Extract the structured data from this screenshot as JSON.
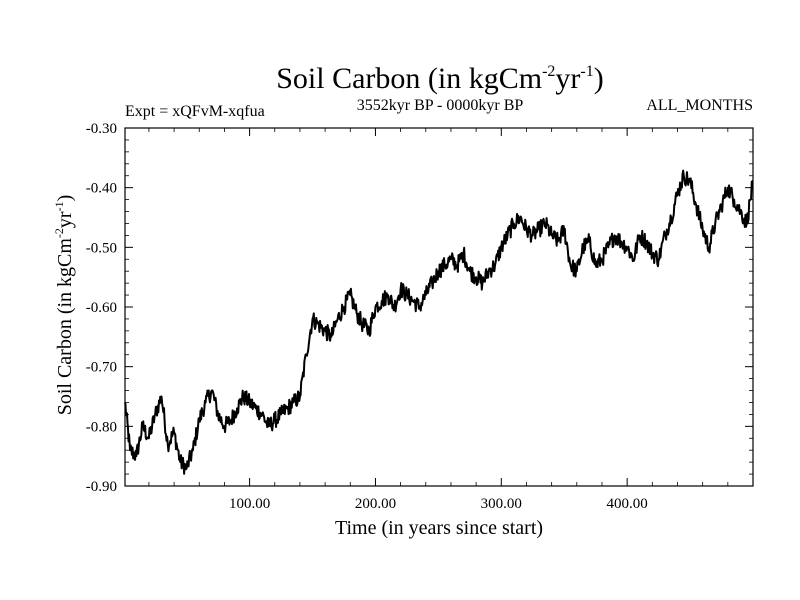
{
  "chart_data": {
    "type": "line",
    "title_main": "Soil Carbon (in kgCm",
    "title_sup1": "-2",
    "title_mid": "yr",
    "title_sup2": "-1",
    "title_end": ")",
    "subtitle_left": "Expt = xQFvM-xqfua",
    "subtitle_center": "3552kyr BP - 0000kyr BP",
    "subtitle_right": "ALL_MONTHS",
    "xlabel": "Time (in years since start)",
    "ylabel_main": "Soil Carbon (in kgCm",
    "ylabel_sup1": "-2",
    "ylabel_mid": "yr",
    "ylabel_sup2": "-1",
    "ylabel_end": ")",
    "xlim": [
      1,
      500
    ],
    "ylim": [
      -0.9,
      -0.3
    ],
    "xticks": [
      100,
      200,
      300,
      400
    ],
    "xtick_labels": [
      "100.00",
      "200.00",
      "300.00",
      "400.00"
    ],
    "yticks": [
      -0.9,
      -0.8,
      -0.7,
      -0.6,
      -0.5,
      -0.4,
      -0.3
    ],
    "ytick_labels": [
      "-0.90",
      "-0.80",
      "-0.70",
      "-0.60",
      "-0.50",
      "-0.40",
      "-0.30"
    ],
    "line_color": "#000000",
    "series": [
      {
        "name": "Soil Carbon",
        "x": [
          1,
          5,
          10,
          15,
          20,
          25,
          30,
          35,
          40,
          45,
          50,
          55,
          60,
          65,
          70,
          75,
          80,
          85,
          90,
          95,
          100,
          105,
          110,
          115,
          120,
          125,
          130,
          135,
          140,
          145,
          150,
          155,
          160,
          165,
          170,
          175,
          180,
          185,
          190,
          195,
          200,
          205,
          210,
          215,
          220,
          225,
          230,
          235,
          240,
          245,
          250,
          255,
          260,
          265,
          270,
          275,
          280,
          285,
          290,
          295,
          300,
          305,
          310,
          315,
          320,
          325,
          330,
          335,
          340,
          345,
          350,
          355,
          360,
          365,
          370,
          375,
          380,
          385,
          390,
          395,
          400,
          405,
          410,
          415,
          420,
          425,
          430,
          435,
          440,
          445,
          450,
          455,
          460,
          465,
          470,
          475,
          480,
          485,
          490,
          495,
          500
        ],
        "values": [
          -0.76,
          -0.84,
          -0.85,
          -0.8,
          -0.82,
          -0.78,
          -0.75,
          -0.83,
          -0.81,
          -0.86,
          -0.87,
          -0.84,
          -0.79,
          -0.76,
          -0.74,
          -0.78,
          -0.8,
          -0.79,
          -0.77,
          -0.75,
          -0.76,
          -0.77,
          -0.78,
          -0.8,
          -0.79,
          -0.78,
          -0.77,
          -0.76,
          -0.75,
          -0.68,
          -0.62,
          -0.63,
          -0.64,
          -0.65,
          -0.62,
          -0.6,
          -0.58,
          -0.61,
          -0.63,
          -0.64,
          -0.6,
          -0.59,
          -0.58,
          -0.6,
          -0.57,
          -0.58,
          -0.59,
          -0.6,
          -0.58,
          -0.56,
          -0.54,
          -0.53,
          -0.52,
          -0.53,
          -0.51,
          -0.54,
          -0.55,
          -0.56,
          -0.54,
          -0.53,
          -0.5,
          -0.48,
          -0.46,
          -0.45,
          -0.47,
          -0.48,
          -0.47,
          -0.46,
          -0.48,
          -0.49,
          -0.47,
          -0.53,
          -0.54,
          -0.5,
          -0.49,
          -0.53,
          -0.52,
          -0.5,
          -0.48,
          -0.49,
          -0.5,
          -0.52,
          -0.48,
          -0.49,
          -0.51,
          -0.52,
          -0.48,
          -0.45,
          -0.41,
          -0.38,
          -0.39,
          -0.43,
          -0.47,
          -0.5,
          -0.46,
          -0.43,
          -0.4,
          -0.42,
          -0.44,
          -0.46,
          -0.39
        ]
      }
    ]
  }
}
